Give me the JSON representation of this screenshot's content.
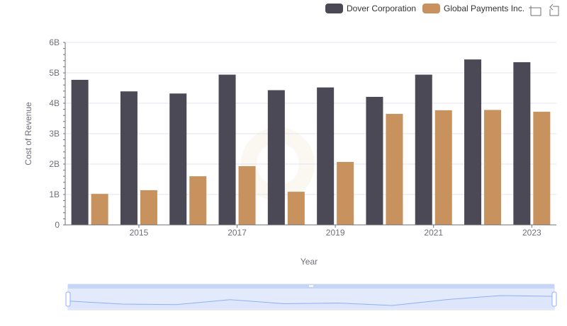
{
  "colors": {
    "dover": "#4a4955",
    "global_payments": "#c8925e",
    "grid": "#e0e6f1",
    "axis": "#6e7079",
    "zoom_fill": "#dde6fb",
    "zoom_line": "#8fb0f7"
  },
  "toolbar": {
    "zoom_icon": "zoom-icon",
    "restore_icon": "restore-icon"
  },
  "chart_data": {
    "type": "bar",
    "xlabel": "Year",
    "ylabel": "Cost of Revenue",
    "x": [
      2014,
      2015,
      2016,
      2017,
      2018,
      2019,
      2020,
      2021,
      2022,
      2023
    ],
    "x_tick_labels": [
      "2015",
      "2017",
      "2019",
      "2021",
      "2023"
    ],
    "y_tick_labels": [
      "0",
      "1B",
      "2B",
      "3B",
      "4B",
      "5B",
      "6B"
    ],
    "ylim": [
      0,
      6000000000
    ],
    "grid": true,
    "legend_position": "top-right",
    "series": [
      {
        "name": "Dover Corporation",
        "values": [
          4770000000,
          4390000000,
          4320000000,
          4940000000,
          4430000000,
          4520000000,
          4210000000,
          4940000000,
          5440000000,
          5350000000
        ]
      },
      {
        "name": "Global Payments Inc.",
        "values": [
          1020000000,
          1140000000,
          1600000000,
          1930000000,
          1090000000,
          2070000000,
          3650000000,
          3770000000,
          3780000000,
          3720000000
        ]
      }
    ]
  }
}
